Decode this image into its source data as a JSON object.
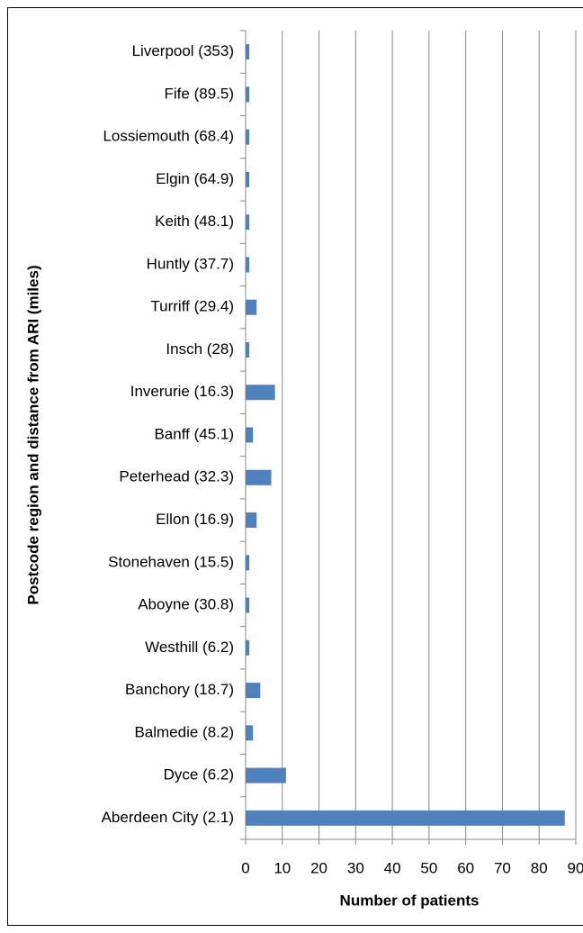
{
  "chart_data": {
    "type": "barh",
    "xlabel": "Number of patients",
    "ylabel": "Postcode region and distance from ARI (miles)",
    "categories": [
      "Liverpool (353)",
      "Fife (89.5)",
      "Lossiemouth (68.4)",
      "Elgin (64.9)",
      "Keith (48.1)",
      "Huntly (37.7)",
      "Turriff (29.4)",
      "Insch (28)",
      "Inverurie (16.3)",
      "Banff (45.1)",
      "Peterhead (32.3)",
      "Ellon (16.9)",
      "Stonehaven (15.5)",
      "Aboyne (30.8)",
      "Westhill (6.2)",
      "Banchory (18.7)",
      "Balmedie (8.2)",
      "Dyce (6.2)",
      "Aberdeen City (2.1)"
    ],
    "values": [
      1,
      1,
      1,
      1,
      1,
      1,
      3,
      1,
      8,
      2,
      7,
      3,
      1,
      1,
      1,
      4,
      2,
      11,
      87
    ],
    "color": "#4f81bd",
    "xlim": [
      0,
      90
    ],
    "xticks": [
      0,
      10,
      20,
      30,
      40,
      50,
      60,
      70,
      80,
      90
    ],
    "grid": true
  }
}
